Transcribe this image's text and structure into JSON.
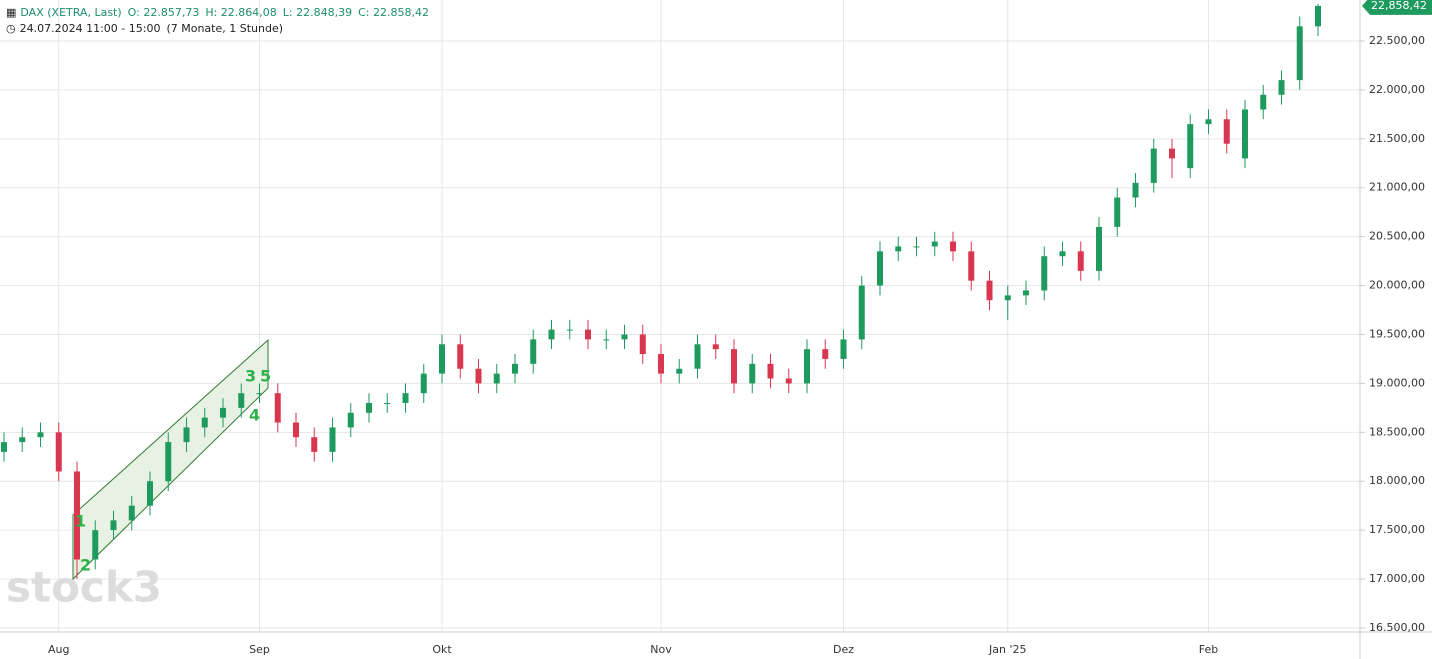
{
  "chart_data": {
    "type": "candlestick",
    "header": {
      "symbol": "DAX (XETRA, Last)",
      "open": "O: 22.857,73",
      "high": "H: 22.864,08",
      "low": "L: 22.848,39",
      "close": "C: 22.858,42",
      "period": "24.07.2024 11:00 - 15:00",
      "range": "(7 Monate, 1 Stunde)"
    },
    "watermark": "stock3",
    "annotations": [
      "1",
      "2",
      "3",
      "4",
      "5"
    ],
    "last_price": {
      "value": 22858.42,
      "label": "22,858,42"
    },
    "categories": [
      null,
      null,
      null,
      "Aug",
      null,
      null,
      null,
      null,
      null,
      null,
      null,
      null,
      null,
      null,
      "Sep",
      null,
      null,
      null,
      null,
      null,
      null,
      null,
      null,
      null,
      "Okt",
      null,
      null,
      null,
      null,
      null,
      null,
      null,
      null,
      null,
      null,
      null,
      "Nov",
      null,
      null,
      null,
      null,
      null,
      null,
      null,
      null,
      null,
      "Dez",
      null,
      null,
      null,
      null,
      null,
      null,
      null,
      null,
      "Jan '25",
      null,
      null,
      null,
      null,
      null,
      null,
      null,
      null,
      null,
      null,
      "Feb",
      null,
      null,
      null,
      null,
      null,
      null
    ],
    "open": [
      18300,
      18400,
      18450,
      18500,
      18100,
      17200,
      17500,
      17600,
      17750,
      18000,
      18400,
      18550,
      18650,
      18750,
      18900,
      18900,
      18600,
      18450,
      18300,
      18550,
      18700,
      18800,
      18800,
      18900,
      19100,
      19400,
      19150,
      19000,
      19100,
      19200,
      19450,
      19550,
      19550,
      19450,
      19450,
      19500,
      19300,
      19100,
      19150,
      19400,
      19350,
      19000,
      19200,
      19050,
      19000,
      19350,
      19250,
      19450,
      20000,
      20350,
      20400,
      20400,
      20450,
      20350,
      20050,
      19850,
      19900,
      19950,
      20300,
      20350,
      20150,
      20600,
      20900,
      21050,
      21400,
      21200,
      21650,
      21700,
      21300,
      21800,
      21950,
      22100,
      22650
    ],
    "high": [
      18500,
      18550,
      18600,
      18600,
      18200,
      17600,
      17700,
      17850,
      18100,
      18500,
      18650,
      18750,
      18850,
      19000,
      19000,
      19000,
      18700,
      18550,
      18650,
      18800,
      18900,
      18900,
      19000,
      19200,
      19500,
      19500,
      19250,
      19200,
      19300,
      19550,
      19650,
      19650,
      19650,
      19550,
      19600,
      19600,
      19400,
      19250,
      19500,
      19500,
      19450,
      19300,
      19300,
      19150,
      19450,
      19450,
      19550,
      20100,
      20450,
      20500,
      20500,
      20550,
      20550,
      20450,
      20150,
      20000,
      20050,
      20400,
      20450,
      20450,
      20700,
      21000,
      21150,
      21500,
      21500,
      21750,
      21800,
      21800,
      21900,
      22050,
      22200,
      22750,
      22880
    ],
    "low": [
      18200,
      18300,
      18350,
      18000,
      17000,
      17100,
      17400,
      17500,
      17650,
      17900,
      18300,
      18450,
      18550,
      18650,
      18800,
      18500,
      18350,
      18200,
      18200,
      18450,
      18600,
      18700,
      18700,
      18800,
      19000,
      19050,
      18900,
      18900,
      19000,
      19100,
      19350,
      19450,
      19350,
      19350,
      19350,
      19200,
      19000,
      19000,
      19050,
      19250,
      18900,
      18900,
      18950,
      18900,
      18900,
      19150,
      19150,
      19350,
      19900,
      20250,
      20300,
      20300,
      20250,
      19950,
      19750,
      19650,
      19800,
      19850,
      20200,
      20050,
      20050,
      20500,
      20800,
      20950,
      21100,
      21100,
      21550,
      21350,
      21200,
      21700,
      21850,
      22000,
      22550
    ],
    "close": [
      18400,
      18450,
      18500,
      18100,
      17200,
      17500,
      17600,
      17750,
      18000,
      18400,
      18550,
      18650,
      18750,
      18900,
      18900,
      18600,
      18450,
      18300,
      18550,
      18700,
      18800,
      18800,
      18900,
      19100,
      19400,
      19150,
      19000,
      19100,
      19200,
      19450,
      19550,
      19550,
      19450,
      19450,
      19500,
      19300,
      19100,
      19150,
      19400,
      19350,
      19000,
      19200,
      19050,
      19000,
      19350,
      19250,
      19450,
      20000,
      20350,
      20400,
      20400,
      20450,
      20350,
      20050,
      19850,
      19900,
      19950,
      20300,
      20350,
      20150,
      20600,
      20900,
      21050,
      21400,
      21300,
      21650,
      21700,
      21450,
      21800,
      21950,
      22100,
      22650,
      22858.42
    ],
    "up_color": "#1f9a5f",
    "down_color": "#d9364f",
    "ylim": [
      16459,
      22919
    ],
    "yticks": [
      {
        "value": 16500,
        "label": "16.500,00"
      },
      {
        "value": 17000,
        "label": "17.000,00"
      },
      {
        "value": 17500,
        "label": "17.500,00"
      },
      {
        "value": 18000,
        "label": "18.000,00"
      },
      {
        "value": 18500,
        "label": "18.500,00"
      },
      {
        "value": 19000,
        "label": "19.000,00"
      },
      {
        "value": 19500,
        "label": "19.500,00"
      },
      {
        "value": 20000,
        "label": "20.000,00"
      },
      {
        "value": 20500,
        "label": "20.500,00"
      },
      {
        "value": 21000,
        "label": "21.000,00"
      },
      {
        "value": 21500,
        "label": "21.500,00"
      },
      {
        "value": 22000,
        "label": "22.000,00"
      },
      {
        "value": 22500,
        "label": "22.500,00"
      }
    ],
    "grid": true
  }
}
